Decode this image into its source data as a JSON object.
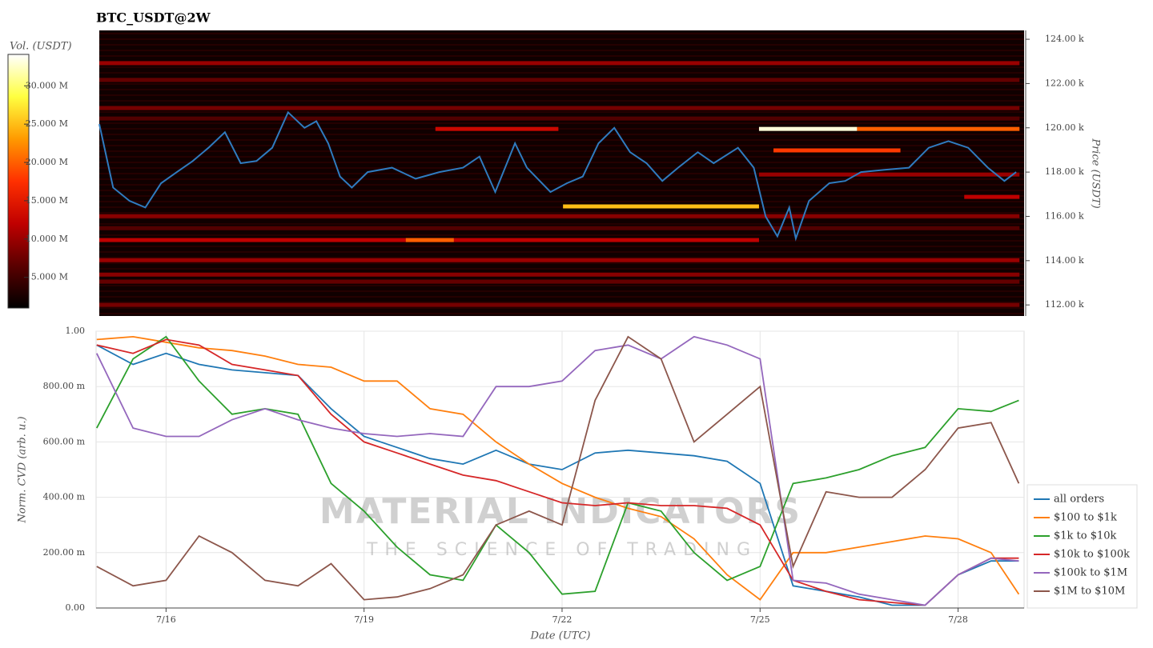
{
  "chart_data": [
    {
      "type": "heatmap",
      "title": "BTC_USDT@2W",
      "y_label": "Price (USDT)",
      "colorbar_label": "Vol. (USDT)",
      "clim": [
        1000000,
        34100000
      ],
      "cticks": [
        {
          "value": 5000000,
          "label": "5.000 M"
        },
        {
          "value": 10000000,
          "label": "10.000 M"
        },
        {
          "value": 15000000,
          "label": "15.000 M"
        },
        {
          "value": 20000000,
          "label": "20.000 M"
        },
        {
          "value": 25000000,
          "label": "25.000 M"
        },
        {
          "value": 30000000,
          "label": "30.000 M"
        }
      ],
      "colorscale": [
        "#000000",
        "#5a0000",
        "#c00000",
        "#ff3000",
        "#ff9a00",
        "#ffff40",
        "#ffffff"
      ],
      "xlim": [
        14.94,
        29.0
      ],
      "ylim": [
        111500,
        124400
      ],
      "yticks": [
        {
          "value": 112000,
          "label": "112.00 k"
        },
        {
          "value": 114000,
          "label": "114.00 k"
        },
        {
          "value": 116000,
          "label": "116.00 k"
        },
        {
          "value": 118000,
          "label": "118.00 k"
        },
        {
          "value": 120000,
          "label": "120.00 k"
        },
        {
          "value": 122000,
          "label": "122.00 k"
        },
        {
          "value": 124000,
          "label": "124.00 k"
        }
      ],
      "bands": [
        {
          "price": 122920,
          "x": [
            14.94,
            28.93
          ],
          "volume": 10000000
        },
        {
          "price": 122160,
          "x": [
            14.94,
            28.93
          ],
          "volume": 7000000
        },
        {
          "price": 120890,
          "x": [
            14.94,
            28.93
          ],
          "volume": 8000000
        },
        {
          "price": 120420,
          "x": [
            14.94,
            28.93
          ],
          "volume": 6000000
        },
        {
          "price": 119950,
          "x": [
            20.05,
            21.92
          ],
          "volume": 13000000
        },
        {
          "price": 119950,
          "x": [
            26.46,
            28.93
          ],
          "volume": 20000000
        },
        {
          "price": 119950,
          "x": [
            24.97,
            26.46
          ],
          "volume": 33000000
        },
        {
          "price": 118980,
          "x": [
            25.19,
            27.12
          ],
          "volume": 18000000
        },
        {
          "price": 117890,
          "x": [
            24.97,
            28.93
          ],
          "volume": 10000000
        },
        {
          "price": 116880,
          "x": [
            28.09,
            28.93
          ],
          "volume": 12000000
        },
        {
          "price": 116450,
          "x": [
            21.99,
            24.97
          ],
          "volume": 25000000
        },
        {
          "price": 116010,
          "x": [
            14.94,
            28.93
          ],
          "volume": 9000000
        },
        {
          "price": 115470,
          "x": [
            14.94,
            28.93
          ],
          "volume": 6000000
        },
        {
          "price": 114930,
          "x": [
            14.94,
            24.97
          ],
          "volume": 12000000
        },
        {
          "price": 114930,
          "x": [
            19.6,
            20.33
          ],
          "volume": 20000000
        },
        {
          "price": 114020,
          "x": [
            14.94,
            28.93
          ],
          "volume": 10000000
        },
        {
          "price": 113370,
          "x": [
            14.94,
            28.93
          ],
          "volume": 9000000
        },
        {
          "price": 113050,
          "x": [
            14.94,
            28.93
          ],
          "volume": 7000000
        },
        {
          "price": 112000,
          "x": [
            14.94,
            28.93
          ],
          "volume": 8000000
        }
      ],
      "line": {
        "color": "#2f7bbf",
        "x": [
          14.94,
          15.15,
          15.4,
          15.64,
          15.88,
          16.12,
          16.36,
          16.6,
          16.85,
          17.09,
          17.33,
          17.57,
          17.81,
          18.06,
          18.24,
          18.42,
          18.6,
          18.78,
          19.02,
          19.39,
          19.75,
          20.11,
          20.47,
          20.72,
          20.96,
          21.26,
          21.44,
          21.8,
          22.05,
          22.29,
          22.53,
          22.77,
          23.01,
          23.26,
          23.5,
          23.74,
          24.04,
          24.28,
          24.65,
          24.89,
          25.07,
          25.25,
          25.43,
          25.53,
          25.73,
          26.04,
          26.28,
          26.52,
          26.88,
          27.25,
          27.55,
          27.85,
          28.15,
          28.45,
          28.7,
          28.88
        ],
        "values": [
          120170,
          117300,
          116700,
          116400,
          117500,
          118000,
          118500,
          119100,
          119800,
          118400,
          118500,
          119100,
          120700,
          120000,
          120300,
          119300,
          117800,
          117300,
          118000,
          118200,
          117700,
          118000,
          118200,
          118700,
          117100,
          119300,
          118200,
          117100,
          117500,
          117800,
          119300,
          120000,
          118900,
          118400,
          117600,
          118200,
          118900,
          118400,
          119100,
          118200,
          116000,
          115100,
          116400,
          115000,
          116700,
          117500,
          117600,
          118000,
          118100,
          118200,
          119100,
          119400,
          119100,
          118200,
          117600,
          118000
        ]
      }
    },
    {
      "type": "line",
      "x_label": "Date (UTC)",
      "y_label": "Norm. CVD (arb. u.)",
      "grid": true,
      "legend": "lower right",
      "watermark": {
        "title": "MATERIAL INDICATORS",
        "subtitle": "THE SCIENCE OF TRADING"
      },
      "xlim": [
        14.94,
        29.0
      ],
      "xticks": [
        {
          "value": 16,
          "label": "7/16"
        },
        {
          "value": 19,
          "label": "7/19"
        },
        {
          "value": 22,
          "label": "7/22"
        },
        {
          "value": 25,
          "label": "7/25"
        },
        {
          "value": 28,
          "label": "7/28"
        }
      ],
      "ylim": [
        0,
        1
      ],
      "yticks": [
        {
          "value": 0,
          "label": "0.00"
        },
        {
          "value": 0.2,
          "label": "200.00 m"
        },
        {
          "value": 0.4,
          "label": "400.00 m"
        },
        {
          "value": 0.6,
          "label": "600.00 m"
        },
        {
          "value": 0.8,
          "label": "800.00 m"
        },
        {
          "value": 1,
          "label": "1.00"
        }
      ],
      "x": [
        14.95,
        15.5,
        16,
        16.5,
        17,
        17.5,
        18,
        18.5,
        19,
        19.5,
        20,
        20.5,
        21,
        21.5,
        22,
        22.5,
        23,
        23.5,
        24,
        24.5,
        25,
        25.5,
        26,
        26.5,
        27,
        27.5,
        28,
        28.5,
        28.92
      ],
      "series": [
        {
          "name": "all orders",
          "color": "#1f77b4",
          "values": [
            0.95,
            0.88,
            0.92,
            0.88,
            0.86,
            0.85,
            0.84,
            0.72,
            0.62,
            0.58,
            0.54,
            0.52,
            0.57,
            0.52,
            0.5,
            0.56,
            0.57,
            0.56,
            0.55,
            0.53,
            0.45,
            0.08,
            0.06,
            0.04,
            0.01,
            0.01,
            0.12,
            0.17,
            0.17
          ]
        },
        {
          "name": "$100 to $1k",
          "color": "#ff7f0e",
          "values": [
            0.97,
            0.98,
            0.96,
            0.94,
            0.93,
            0.91,
            0.88,
            0.87,
            0.82,
            0.82,
            0.72,
            0.7,
            0.6,
            0.52,
            0.45,
            0.4,
            0.36,
            0.33,
            0.25,
            0.12,
            0.03,
            0.2,
            0.2,
            0.22,
            0.24,
            0.26,
            0.25,
            0.2,
            0.05
          ]
        },
        {
          "name": "$1k to $10k",
          "color": "#2ca02c",
          "values": [
            0.65,
            0.9,
            0.98,
            0.82,
            0.7,
            0.72,
            0.7,
            0.45,
            0.35,
            0.22,
            0.12,
            0.1,
            0.3,
            0.2,
            0.05,
            0.06,
            0.38,
            0.35,
            0.2,
            0.1,
            0.15,
            0.45,
            0.47,
            0.5,
            0.55,
            0.58,
            0.72,
            0.71,
            0.75
          ]
        },
        {
          "name": "$10k to $100k",
          "color": "#d62728",
          "values": [
            0.95,
            0.92,
            0.97,
            0.95,
            0.88,
            0.86,
            0.84,
            0.7,
            0.6,
            0.56,
            0.52,
            0.48,
            0.46,
            0.42,
            0.38,
            0.37,
            0.38,
            0.37,
            0.37,
            0.36,
            0.3,
            0.1,
            0.06,
            0.03,
            0.02,
            0.01,
            0.12,
            0.18,
            0.18
          ]
        },
        {
          "name": "$100k to $1M",
          "color": "#9467bd",
          "values": [
            0.92,
            0.65,
            0.62,
            0.62,
            0.68,
            0.72,
            0.68,
            0.65,
            0.63,
            0.62,
            0.63,
            0.62,
            0.8,
            0.8,
            0.82,
            0.93,
            0.95,
            0.9,
            0.98,
            0.95,
            0.9,
            0.1,
            0.09,
            0.05,
            0.03,
            0.01,
            0.12,
            0.18,
            0.17
          ]
        },
        {
          "name": "$1M to $10M",
          "color": "#8c564b",
          "values": [
            0.15,
            0.08,
            0.1,
            0.26,
            0.2,
            0.1,
            0.08,
            0.16,
            0.03,
            0.04,
            0.07,
            0.12,
            0.3,
            0.35,
            0.3,
            0.75,
            0.98,
            0.9,
            0.6,
            0.7,
            0.8,
            0.15,
            0.42,
            0.4,
            0.4,
            0.5,
            0.65,
            0.67,
            0.45
          ]
        }
      ]
    }
  ]
}
